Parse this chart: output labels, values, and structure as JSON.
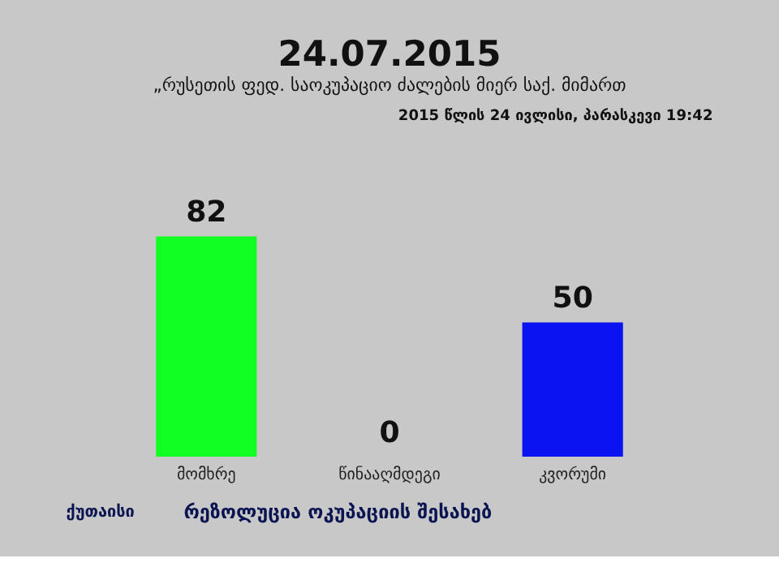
{
  "chart_data": {
    "type": "bar",
    "title": "24.07.2015",
    "subtitle": "„რუსეთის ფედ. საოკუპაციო ძალების მიერ საქ. მიმართ",
    "categories": [
      "მომხრე",
      "წინააღმდეგი",
      "კვორუმი"
    ],
    "values": [
      82,
      0,
      50
    ],
    "colors": [
      "#11ff22",
      "#ff0000",
      "#0a14f0"
    ],
    "data_labels": true,
    "annotations": [
      "2015 წლის 24 ივლისი, პარასკევი 19:42",
      "ქუთაისი",
      "რეზოლუცია ოკუპაციის შესახებ"
    ]
  }
}
